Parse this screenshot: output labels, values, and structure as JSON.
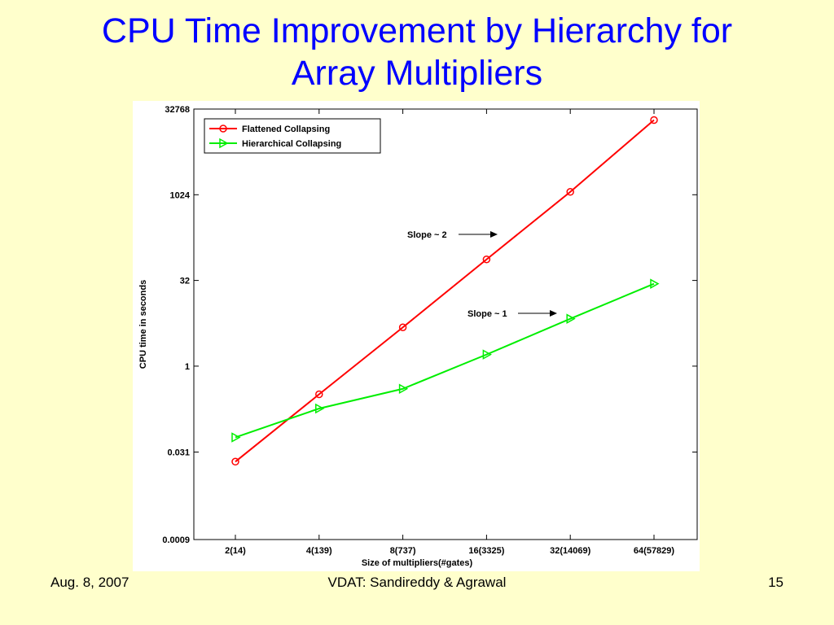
{
  "slide": {
    "title_line1": "CPU Time Improvement by Hierarchy for",
    "title_line2": "Array Multipliers"
  },
  "footer": {
    "date": "Aug. 8, 2007",
    "center": "VDAT: Sandireddy & Agrawal",
    "page": "15"
  },
  "colors": {
    "background": "#FFFFCC",
    "title": "#0000FF",
    "flattened": "#FF0000",
    "hierarchical": "#00EE00"
  },
  "chart_data": {
    "type": "line",
    "y_scale": "log2",
    "xlabel": "Size of multipliers(#gates)",
    "ylabel": "CPU time in seconds",
    "categories": [
      "2(14)",
      "4(139)",
      "8(737)",
      "16(3325)",
      "32(14069)",
      "64(57829)"
    ],
    "y_ticks": [
      0.0009,
      0.031,
      1,
      32,
      1024,
      32768
    ],
    "y_tick_labels": [
      "0.0009",
      "0.031",
      "1",
      "32",
      "1024",
      "32768"
    ],
    "ylim": [
      0.0009,
      32768
    ],
    "grid": false,
    "legend_position": "top-left",
    "series": [
      {
        "name": "Flattened Collapsing",
        "marker": "circle",
        "values": [
          0.021,
          0.32,
          4.8,
          75,
          1150,
          21000
        ]
      },
      {
        "name": "Hierarchical Collapsing",
        "marker": "triangle-right",
        "values": [
          0.056,
          0.18,
          0.4,
          1.6,
          6.8,
          28
        ]
      }
    ],
    "annotations": [
      {
        "text": "Slope ~ 2",
        "target_series": "Flattened Collapsing",
        "near_category": "16(3325)"
      },
      {
        "text": "Slope ~ 1",
        "target_series": "Hierarchical Collapsing",
        "near_category": "32(14069)"
      }
    ]
  }
}
